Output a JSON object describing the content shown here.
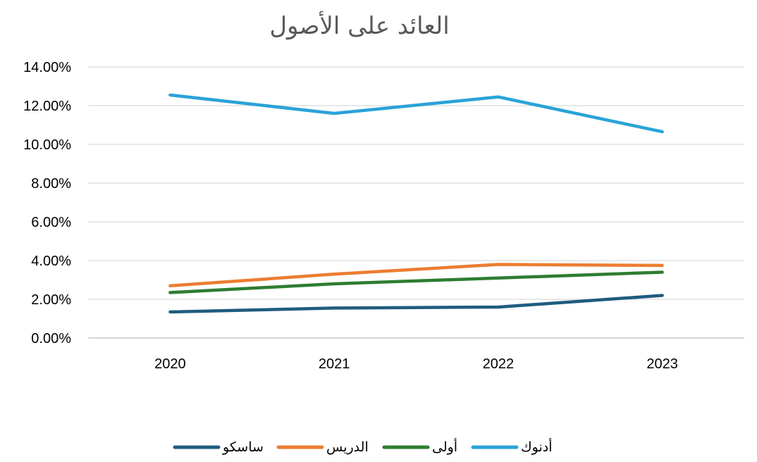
{
  "chart_data": {
    "type": "line",
    "title": "العائد على الأصول",
    "xlabel": "",
    "ylabel": "",
    "categories": [
      "2020",
      "2021",
      "2022",
      "2023"
    ],
    "ylim": [
      0,
      0.14
    ],
    "yticks": [
      0,
      0.02,
      0.04,
      0.06,
      0.08,
      0.1,
      0.12,
      0.14
    ],
    "ytick_labels": [
      "0.00%",
      "2.00%",
      "4.00%",
      "6.00%",
      "8.00%",
      "10.00%",
      "12.00%",
      "14.00%"
    ],
    "grid": true,
    "legend_position": "bottom",
    "series": [
      {
        "name": "ساسكو",
        "color": "#1f5c7f",
        "values": [
          0.0135,
          0.0155,
          0.016,
          0.022
        ]
      },
      {
        "name": "الدريس",
        "color": "#ed7d31",
        "values": [
          0.027,
          0.033,
          0.038,
          0.0375
        ]
      },
      {
        "name": "أولى",
        "color": "#2e7d32",
        "values": [
          0.0235,
          0.028,
          0.031,
          0.034
        ]
      },
      {
        "name": "أدنوك",
        "color": "#2aa3d8",
        "values": [
          0.1255,
          0.116,
          0.1245,
          0.1065
        ]
      }
    ]
  }
}
